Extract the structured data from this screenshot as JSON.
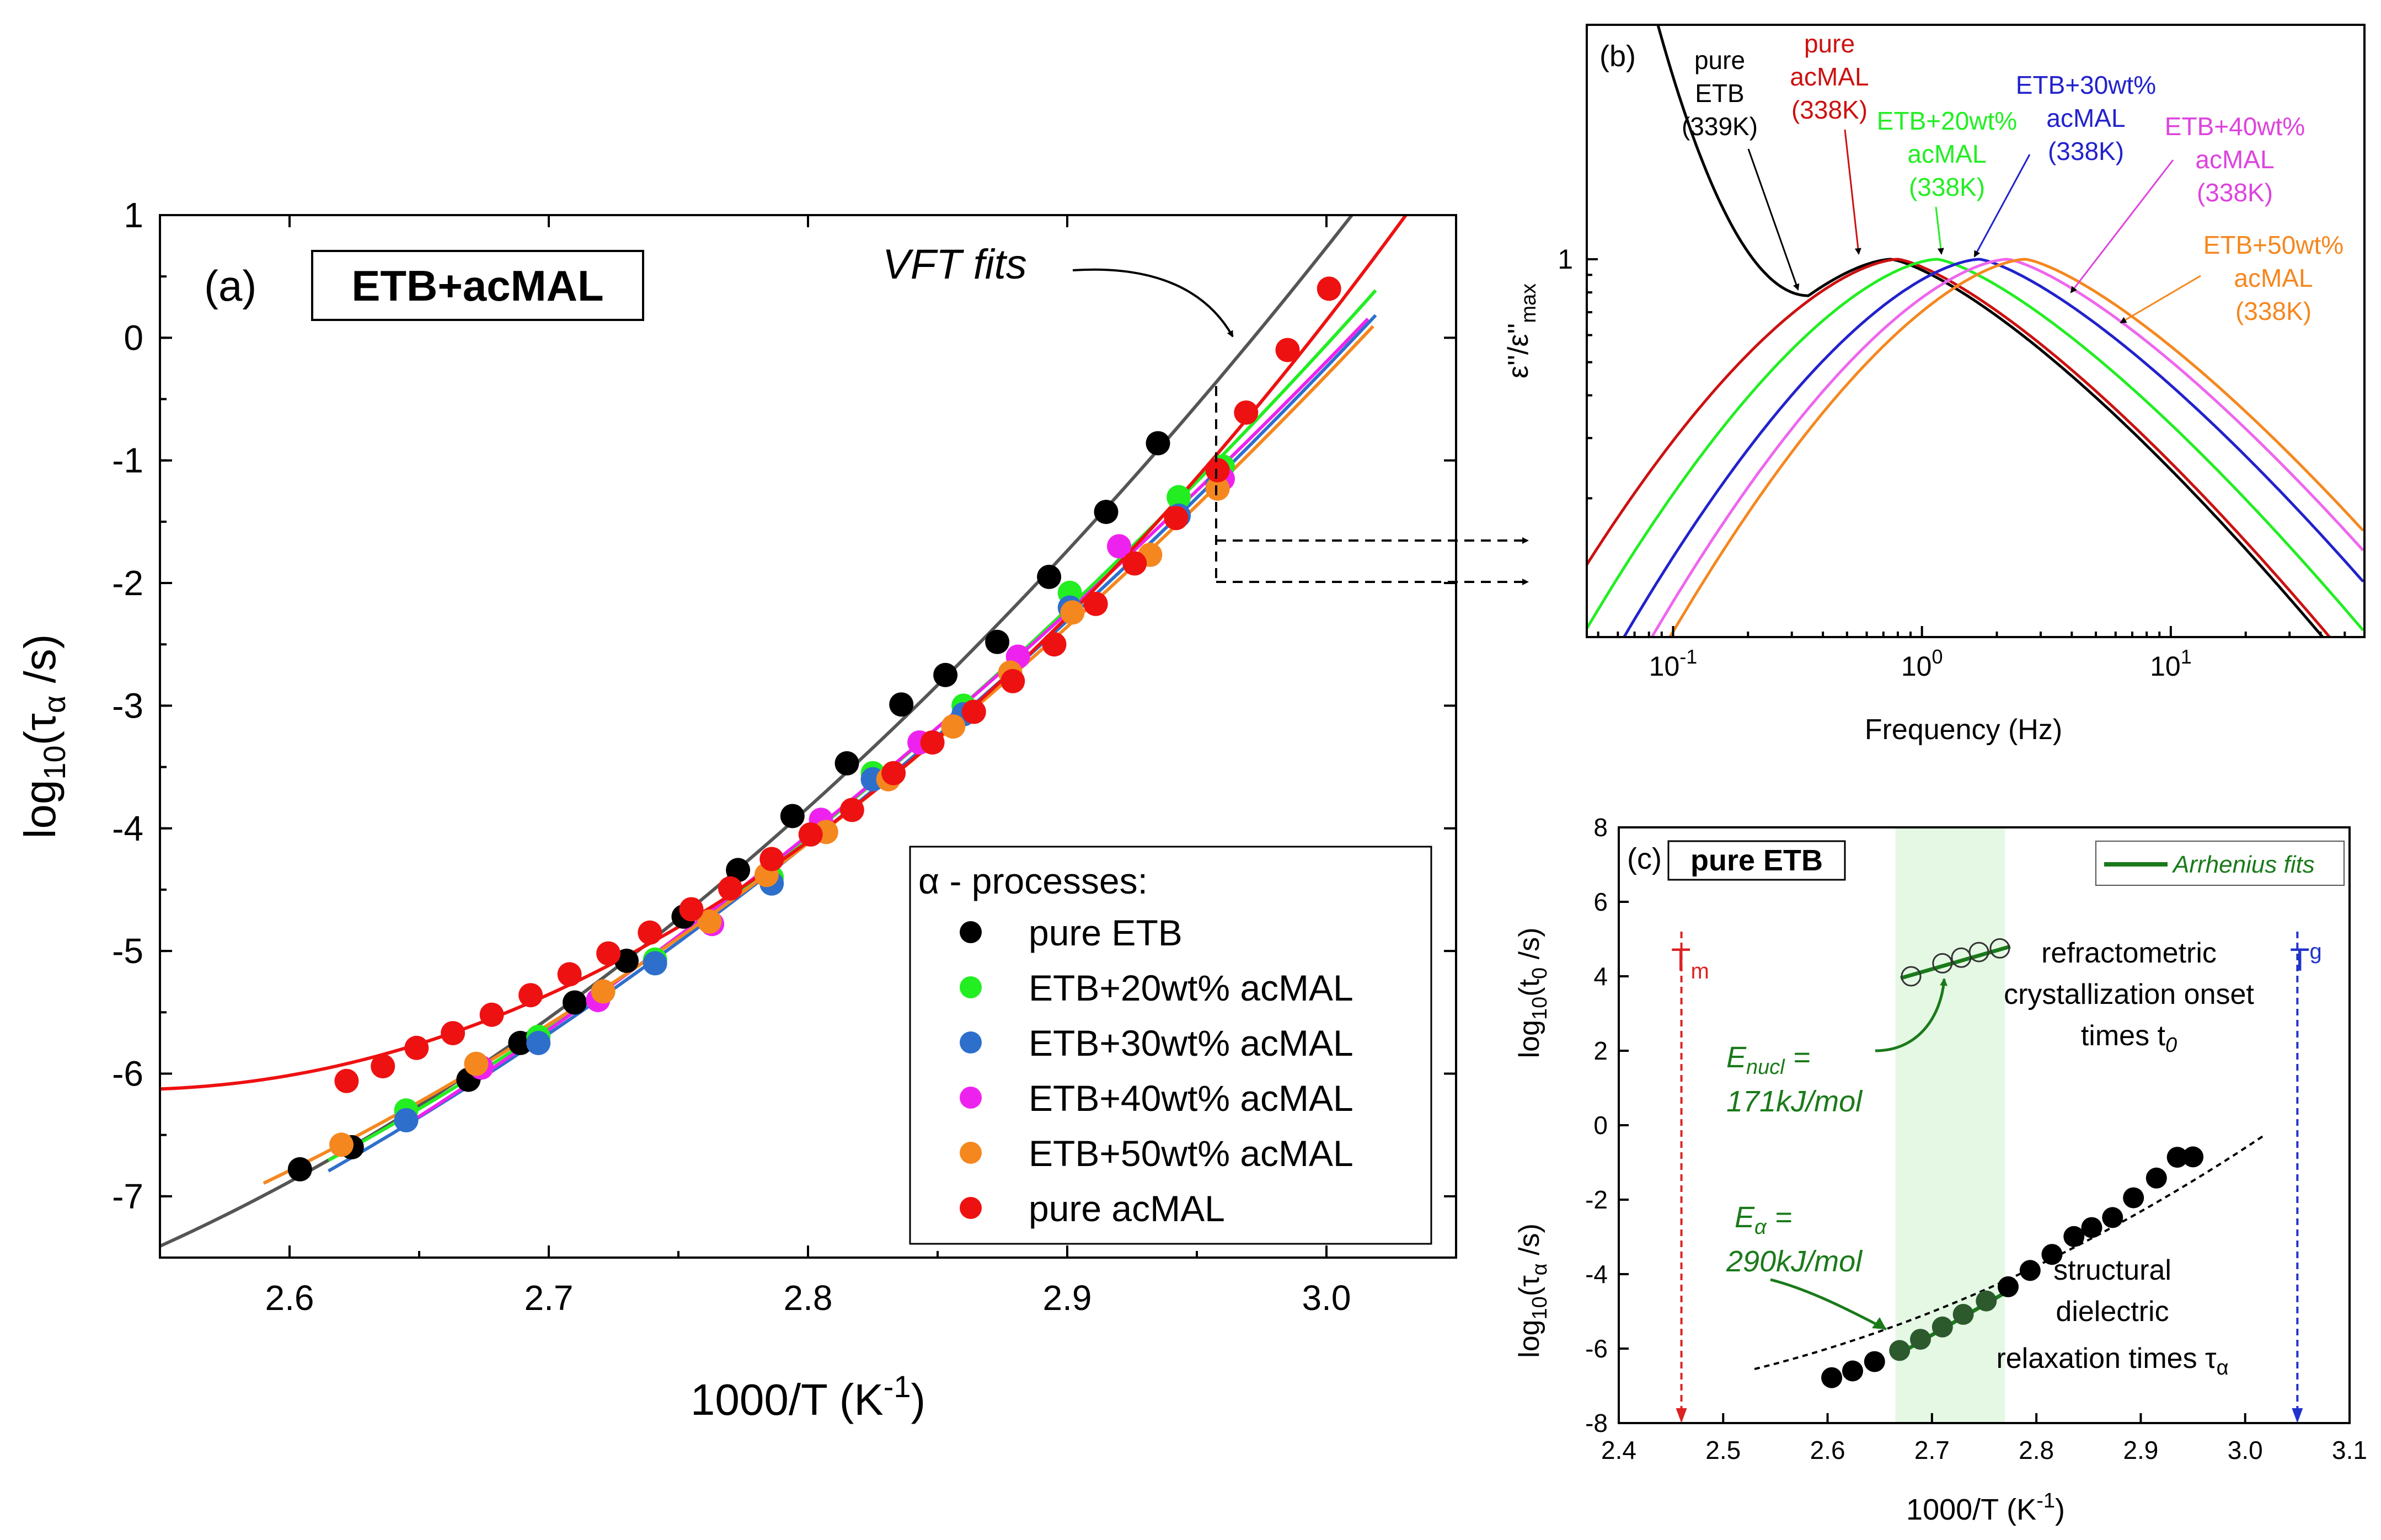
{
  "chart_data": [
    {
      "panel": "(a)",
      "type": "scatter",
      "title": "ETB+acMAL",
      "xlabel": "1000/T (K-1)",
      "ylabel": "log10(τα /s)",
      "xlim": [
        2.55,
        3.05
      ],
      "ylim": [
        -7.5,
        1
      ],
      "xticks": [
        "2.6",
        "2.7",
        "2.8",
        "2.9",
        "3.0"
      ],
      "yticks": [
        "1",
        "0",
        "-1",
        "-2",
        "-3",
        "-4",
        "-5",
        "-6",
        "-7"
      ],
      "annotation": "VFT fits",
      "legend_title": "α - processes:",
      "legend_position": "bottom-right",
      "series": [
        {
          "name": "pure ETB",
          "color": "#000000",
          "x": [
            2.604,
            2.624,
            2.669,
            2.689,
            2.71,
            2.73,
            2.752,
            2.773,
            2.794,
            2.815,
            2.836,
            2.853,
            2.873,
            2.893,
            2.915,
            2.935
          ],
          "y": [
            -6.78,
            -6.6,
            -6.05,
            -5.75,
            -5.42,
            -5.08,
            -4.72,
            -4.34,
            -3.9,
            -3.47,
            -2.99,
            -2.75,
            -2.48,
            -1.95,
            -1.42,
            -0.86
          ]
        },
        {
          "name": "ETB+20wt% acMAL",
          "color": "#22ee22",
          "x": [
            2.645,
            2.696,
            2.741,
            2.786,
            2.825,
            2.86,
            2.901,
            2.943,
            2.96
          ],
          "y": [
            -6.3,
            -5.7,
            -5.07,
            -4.4,
            -3.55,
            -3.0,
            -2.08,
            -1.3,
            -1.05
          ]
        },
        {
          "name": "ETB+30wt% acMAL",
          "color": "#2e6fcc",
          "x": [
            2.645,
            2.696,
            2.741,
            2.786,
            2.825,
            2.86,
            2.901,
            2.943,
            2.958
          ],
          "y": [
            -6.38,
            -5.75,
            -5.1,
            -4.45,
            -3.6,
            -3.07,
            -2.2,
            -1.45,
            -1.2
          ]
        },
        {
          "name": "ETB+40wt% acMAL",
          "color": "#ee22ee",
          "x": [
            2.674,
            2.719,
            2.763,
            2.805,
            2.843,
            2.881,
            2.92,
            2.96
          ],
          "y": [
            -5.95,
            -5.4,
            -4.78,
            -3.93,
            -3.3,
            -2.6,
            -1.7,
            -1.15
          ]
        },
        {
          "name": "ETB+50wt% acMAL",
          "color": "#f5871f",
          "x": [
            2.62,
            2.672,
            2.721,
            2.762,
            2.784,
            2.807,
            2.831,
            2.856,
            2.878,
            2.902,
            2.932,
            2.958
          ],
          "y": [
            -6.58,
            -5.92,
            -5.33,
            -4.76,
            -4.38,
            -4.03,
            -3.6,
            -3.17,
            -2.73,
            -2.24,
            -1.77,
            -1.23
          ]
        },
        {
          "name": "pure acMAL",
          "color": "#ee1111",
          "x": [
            2.622,
            2.636,
            2.649,
            2.663,
            2.678,
            2.693,
            2.708,
            2.723,
            2.739,
            2.755,
            2.77,
            2.786,
            2.801,
            2.817,
            2.833,
            2.848,
            2.864,
            2.879,
            2.895,
            2.911,
            2.926,
            2.942,
            2.958,
            2.969,
            2.985,
            3.001
          ],
          "y": [
            -6.06,
            -5.94,
            -5.79,
            -5.67,
            -5.52,
            -5.36,
            -5.19,
            -5.02,
            -4.85,
            -4.66,
            -4.49,
            -4.25,
            -4.05,
            -3.85,
            -3.55,
            -3.3,
            -3.05,
            -2.8,
            -2.5,
            -2.17,
            -1.84,
            -1.47,
            -1.08,
            -0.61,
            -0.1,
            0.4
          ]
        }
      ]
    },
    {
      "panel": "(b)",
      "type": "line",
      "xlabel": "Frequency (Hz)",
      "ylabel": "ε''/ε''max",
      "x_scale": "log",
      "y_scale": "log",
      "xlim": [
        0.045,
        60
      ],
      "xticks": [
        "10-1",
        "100",
        "101"
      ],
      "yticks": [
        "1"
      ],
      "series": [
        {
          "name": "pure ETB (339K)",
          "color": "#000000",
          "fmax": 0.75
        },
        {
          "name": "pure acMAL (338K)",
          "color": "#cc1111",
          "fmax": 0.8
        },
        {
          "name": "ETB+20wt% acMAL (338K)",
          "color": "#22ee22",
          "fmax": 1.15
        },
        {
          "name": "ETB+30wt% acMAL (338K)",
          "color": "#2222cc",
          "fmax": 1.7
        },
        {
          "name": "ETB+40wt% acMAL (338K)",
          "color": "#ee66ee",
          "fmax": 2.2
        },
        {
          "name": "ETB+50wt% acMAL (338K)",
          "color": "#f5871f",
          "fmax": 2.6
        }
      ]
    },
    {
      "panel": "(c)",
      "type": "scatter",
      "title": "pure ETB",
      "xlabel": "1000/T (K-1)",
      "ylabel_top": "log10(t0 /s)",
      "ylabel_bottom": "log10(τα /s)",
      "xlim": [
        2.4,
        3.1
      ],
      "ylim": [
        -8,
        8
      ],
      "xticks": [
        "2.4",
        "2.5",
        "2.6",
        "2.7",
        "2.8",
        "2.9",
        "3.0",
        "3.1"
      ],
      "yticks": [
        "8",
        "6",
        "4",
        "2",
        "0",
        "-2",
        "-4",
        "-6",
        "-8"
      ],
      "legend": "Arrhenius fits",
      "shaded_range": [
        2.665,
        2.77
      ],
      "Tm": 2.46,
      "Tg": 3.05,
      "onset_times": {
        "x": [
          2.68,
          2.71,
          2.728,
          2.745,
          2.765
        ],
        "y": [
          4.0,
          4.35,
          4.5,
          4.65,
          4.75
        ]
      },
      "relaxation_times": {
        "x": [
          2.604,
          2.624,
          2.645,
          2.669,
          2.689,
          2.71,
          2.73,
          2.752,
          2.773,
          2.794,
          2.815,
          2.836,
          2.853,
          2.873,
          2.893,
          2.915,
          2.935,
          2.95
        ],
        "y": [
          -6.78,
          -6.6,
          -6.35,
          -6.05,
          -5.75,
          -5.42,
          -5.08,
          -4.72,
          -4.34,
          -3.9,
          -3.47,
          -2.99,
          -2.75,
          -2.48,
          -1.95,
          -1.42,
          -0.86,
          -0.85
        ]
      }
    }
  ],
  "labels": {
    "panel_a": "(a)",
    "title_a": "ETB+acMAL",
    "vft": "VFT fits",
    "legend_title": "α - processes:",
    "ylabel_a_pre": "log",
    "ylabel_a_sub": "10",
    "ylabel_a_mid": "(τ",
    "ylabel_a_sub2": "α",
    "ylabel_a_post": " /s)",
    "xlabel_a_pre": "1000/T (K",
    "xlabel_a_sup": "-1",
    "xlabel_a_post": ")",
    "panel_b": "(b)",
    "b_ann": {
      "etb": [
        "pure",
        "ETB",
        "(339K)"
      ],
      "acmal": [
        "pure",
        "acMAL",
        "(338K)"
      ],
      "e20": [
        "ETB+20wt%",
        "acMAL",
        "(338K)"
      ],
      "e30": [
        "ETB+30wt%",
        "acMAL",
        "(338K)"
      ],
      "e40": [
        "ETB+40wt%",
        "acMAL",
        "(338K)"
      ],
      "e50": [
        "ETB+50wt%",
        "acMAL",
        "(338K)"
      ]
    },
    "xlabel_b": "Frequency (Hz)",
    "ylabel_b_pre": "ε''/ε''",
    "ylabel_b_sub": "max",
    "panel_c": "(c)",
    "title_c": "pure ETB",
    "arrhenius": "Arrhenius fits",
    "tm_t": "T",
    "tm_s": "m",
    "tg_t": "T",
    "tg_s": "g",
    "refr": [
      "refractometric",
      "crystallization onset"
    ],
    "refr3": "times t",
    "refr3_sub": "0",
    "struct": [
      "structural",
      "dielectric"
    ],
    "struct3": "relaxation times τ",
    "struct3_sub": "α",
    "enucl_pre": "E",
    "enucl_sub": "nucl",
    "enucl_post": " =",
    "enucl_val": "171kJ/mol",
    "ea_pre": "E",
    "ea_sub": "α",
    "ea_post": " =",
    "ea_val": "290kJ/mol",
    "ylabel_c1_pre": "log",
    "ylabel_c1_sub": "10",
    "ylabel_c1_mid": "(t",
    "ylabel_c1_sub2": "0",
    "ylabel_c1_post": " /s)",
    "ylabel_c2_pre": "log",
    "ylabel_c2_sub": "10",
    "ylabel_c2_mid": "(τ",
    "ylabel_c2_sub2": "α",
    "ylabel_c2_post": " /s)",
    "xlabel_c_pre": "1000/T (K",
    "xlabel_c_sup": "-1",
    "xlabel_c_post": ")"
  }
}
